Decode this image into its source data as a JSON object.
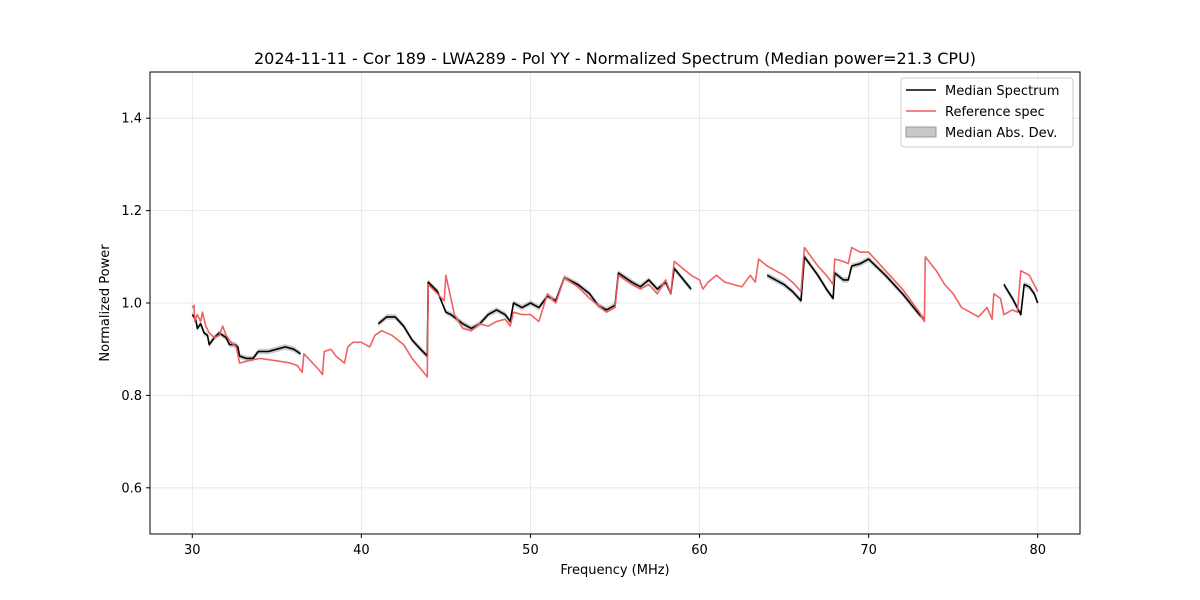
{
  "chart_data": {
    "type": "line",
    "title": "2024-11-11 - Cor 189 - LWA289 - Pol YY - Normalized Spectrum (Median power=21.3 CPU)",
    "xlabel": "Frequency (MHz)",
    "ylabel": "Normalized Power",
    "xlim": [
      27.5,
      82.5
    ],
    "ylim": [
      0.5,
      1.5
    ],
    "xticks": [
      30,
      40,
      50,
      60,
      70,
      80
    ],
    "yticks": [
      0.6,
      0.8,
      1.0,
      1.2,
      1.4
    ],
    "xtick_labels": [
      "30",
      "40",
      "50",
      "60",
      "70",
      "80"
    ],
    "ytick_labels": [
      "0.6",
      "0.8",
      "1.0",
      "1.2",
      "1.4"
    ],
    "grid": true,
    "legend_position": "top-right",
    "legend": [
      "Median Spectrum",
      "Reference spec",
      "Median Abs. Dev."
    ],
    "colors": {
      "median": "#000000",
      "reference": "#f05a5a",
      "mad_fill": "#bdbdbd"
    },
    "series": [
      {
        "name": "Median Spectrum",
        "segments": [
          [
            [
              30.0,
              0.975
            ],
            [
              30.2,
              0.965
            ],
            [
              30.3,
              0.945
            ],
            [
              30.5,
              0.955
            ],
            [
              30.7,
              0.935
            ],
            [
              30.9,
              0.93
            ],
            [
              31.0,
              0.91
            ],
            [
              31.3,
              0.925
            ],
            [
              31.6,
              0.935
            ],
            [
              31.8,
              0.93
            ],
            [
              32.0,
              0.925
            ],
            [
              32.2,
              0.91
            ],
            [
              32.5,
              0.91
            ],
            [
              32.7,
              0.905
            ],
            [
              32.8,
              0.885
            ],
            [
              33.2,
              0.88
            ],
            [
              33.6,
              0.88
            ],
            [
              33.9,
              0.895
            ],
            [
              34.5,
              0.895
            ],
            [
              35.0,
              0.9
            ],
            [
              35.5,
              0.905
            ],
            [
              36.0,
              0.9
            ],
            [
              36.4,
              0.89
            ]
          ],
          [
            [
              41.0,
              0.955
            ],
            [
              41.5,
              0.97
            ],
            [
              42.0,
              0.97
            ],
            [
              42.5,
              0.95
            ],
            [
              43.0,
              0.92
            ],
            [
              43.5,
              0.9
            ],
            [
              43.9,
              0.885
            ],
            [
              43.95,
              1.045
            ],
            [
              44.5,
              1.025
            ],
            [
              45.0,
              0.98
            ],
            [
              45.3,
              0.975
            ],
            [
              46.0,
              0.955
            ],
            [
              46.5,
              0.945
            ],
            [
              47.0,
              0.955
            ],
            [
              47.5,
              0.975
            ],
            [
              48.0,
              0.985
            ],
            [
              48.5,
              0.975
            ],
            [
              48.8,
              0.96
            ],
            [
              49.0,
              1.0
            ],
            [
              49.5,
              0.99
            ],
            [
              50.0,
              1.0
            ],
            [
              50.5,
              0.99
            ],
            [
              51.0,
              1.015
            ],
            [
              51.5,
              1.005
            ],
            [
              52.0,
              1.055
            ],
            [
              52.8,
              1.04
            ],
            [
              53.5,
              1.02
            ],
            [
              54.0,
              0.995
            ],
            [
              54.5,
              0.985
            ],
            [
              55.0,
              0.995
            ],
            [
              55.2,
              1.065
            ],
            [
              56.0,
              1.045
            ],
            [
              56.5,
              1.035
            ],
            [
              57.0,
              1.05
            ],
            [
              57.5,
              1.03
            ],
            [
              58.0,
              1.045
            ],
            [
              58.3,
              1.02
            ],
            [
              58.5,
              1.075
            ],
            [
              59.5,
              1.03
            ]
          ],
          [
            [
              64.0,
              1.06
            ],
            [
              64.5,
              1.05
            ],
            [
              65.0,
              1.04
            ],
            [
              65.5,
              1.025
            ],
            [
              66.0,
              1.005
            ],
            [
              66.2,
              1.1
            ],
            [
              67.0,
              1.06
            ],
            [
              67.5,
              1.03
            ],
            [
              67.9,
              1.01
            ],
            [
              68.0,
              1.065
            ],
            [
              68.5,
              1.05
            ],
            [
              68.8,
              1.05
            ],
            [
              69.0,
              1.08
            ],
            [
              69.5,
              1.085
            ],
            [
              70.0,
              1.095
            ],
            [
              71.0,
              1.06
            ],
            [
              72.0,
              1.02
            ],
            [
              73.0,
              0.975
            ],
            [
              73.3,
              0.965
            ]
          ],
          [
            [
              78.0,
              1.04
            ],
            [
              78.5,
              1.01
            ],
            [
              79.0,
              0.975
            ],
            [
              79.2,
              1.04
            ],
            [
              79.5,
              1.035
            ],
            [
              79.8,
              1.02
            ],
            [
              80.0,
              1.0
            ]
          ]
        ]
      },
      {
        "name": "Reference spec",
        "segments": [
          [
            [
              30.0,
              0.99
            ],
            [
              30.1,
              0.995
            ],
            [
              30.15,
              0.96
            ],
            [
              30.3,
              0.975
            ],
            [
              30.5,
              0.96
            ],
            [
              30.6,
              0.98
            ],
            [
              30.8,
              0.95
            ],
            [
              31.0,
              0.935
            ],
            [
              31.3,
              0.925
            ],
            [
              31.6,
              0.93
            ],
            [
              31.8,
              0.95
            ],
            [
              32.0,
              0.93
            ],
            [
              32.3,
              0.915
            ],
            [
              32.6,
              0.905
            ],
            [
              32.8,
              0.87
            ],
            [
              33.3,
              0.875
            ],
            [
              34.0,
              0.88
            ],
            [
              35.0,
              0.875
            ],
            [
              35.8,
              0.87
            ],
            [
              36.2,
              0.865
            ],
            [
              36.5,
              0.85
            ],
            [
              36.6,
              0.89
            ],
            [
              37.0,
              0.875
            ],
            [
              37.5,
              0.855
            ],
            [
              37.7,
              0.845
            ],
            [
              37.8,
              0.895
            ],
            [
              38.2,
              0.9
            ],
            [
              38.5,
              0.885
            ],
            [
              39.0,
              0.87
            ],
            [
              39.2,
              0.905
            ],
            [
              39.5,
              0.915
            ],
            [
              40.0,
              0.915
            ],
            [
              40.5,
              0.905
            ],
            [
              40.8,
              0.93
            ],
            [
              41.2,
              0.94
            ],
            [
              41.8,
              0.93
            ],
            [
              42.5,
              0.91
            ],
            [
              43.0,
              0.88
            ],
            [
              43.9,
              0.84
            ],
            [
              43.95,
              1.04
            ],
            [
              44.5,
              1.02
            ],
            [
              44.9,
              1.005
            ],
            [
              45.0,
              1.06
            ],
            [
              45.5,
              0.975
            ],
            [
              46.0,
              0.945
            ],
            [
              46.5,
              0.94
            ],
            [
              47.0,
              0.955
            ],
            [
              47.5,
              0.95
            ],
            [
              48.0,
              0.96
            ],
            [
              48.5,
              0.965
            ],
            [
              48.8,
              0.95
            ],
            [
              49.0,
              0.98
            ],
            [
              49.5,
              0.975
            ],
            [
              50.0,
              0.975
            ],
            [
              50.5,
              0.96
            ],
            [
              51.0,
              1.02
            ],
            [
              51.5,
              1.0
            ],
            [
              52.0,
              1.055
            ],
            [
              52.8,
              1.035
            ],
            [
              53.5,
              1.01
            ],
            [
              54.0,
              0.995
            ],
            [
              54.5,
              0.98
            ],
            [
              55.0,
              0.99
            ],
            [
              55.2,
              1.06
            ],
            [
              56.0,
              1.04
            ],
            [
              56.5,
              1.03
            ],
            [
              57.0,
              1.04
            ],
            [
              57.5,
              1.02
            ],
            [
              58.0,
              1.05
            ],
            [
              58.3,
              1.02
            ],
            [
              58.5,
              1.09
            ],
            [
              59.5,
              1.06
            ],
            [
              60.0,
              1.05
            ],
            [
              60.2,
              1.03
            ],
            [
              60.5,
              1.045
            ],
            [
              61.0,
              1.06
            ],
            [
              61.5,
              1.045
            ],
            [
              62.0,
              1.04
            ],
            [
              62.5,
              1.035
            ],
            [
              63.0,
              1.06
            ],
            [
              63.3,
              1.045
            ],
            [
              63.5,
              1.095
            ],
            [
              64.0,
              1.08
            ],
            [
              64.5,
              1.07
            ],
            [
              65.0,
              1.06
            ],
            [
              65.5,
              1.045
            ],
            [
              66.0,
              1.025
            ],
            [
              66.2,
              1.12
            ],
            [
              67.0,
              1.08
            ],
            [
              67.5,
              1.06
            ],
            [
              67.9,
              1.04
            ],
            [
              68.0,
              1.095
            ],
            [
              68.5,
              1.09
            ],
            [
              68.8,
              1.085
            ],
            [
              69.0,
              1.12
            ],
            [
              69.5,
              1.11
            ],
            [
              70.0,
              1.11
            ],
            [
              70.5,
              1.09
            ],
            [
              71.0,
              1.07
            ],
            [
              72.0,
              1.03
            ],
            [
              73.0,
              0.98
            ],
            [
              73.3,
              0.96
            ],
            [
              73.35,
              1.1
            ],
            [
              74.0,
              1.07
            ],
            [
              74.5,
              1.04
            ],
            [
              75.0,
              1.02
            ],
            [
              75.5,
              0.99
            ],
            [
              76.0,
              0.98
            ],
            [
              76.5,
              0.97
            ],
            [
              77.0,
              0.99
            ],
            [
              77.3,
              0.965
            ],
            [
              77.4,
              1.02
            ],
            [
              77.8,
              1.01
            ],
            [
              78.0,
              0.975
            ],
            [
              78.5,
              0.985
            ],
            [
              78.8,
              0.98
            ],
            [
              79.0,
              1.07
            ],
            [
              79.5,
              1.06
            ],
            [
              80.0,
              1.025
            ]
          ]
        ]
      }
    ]
  }
}
